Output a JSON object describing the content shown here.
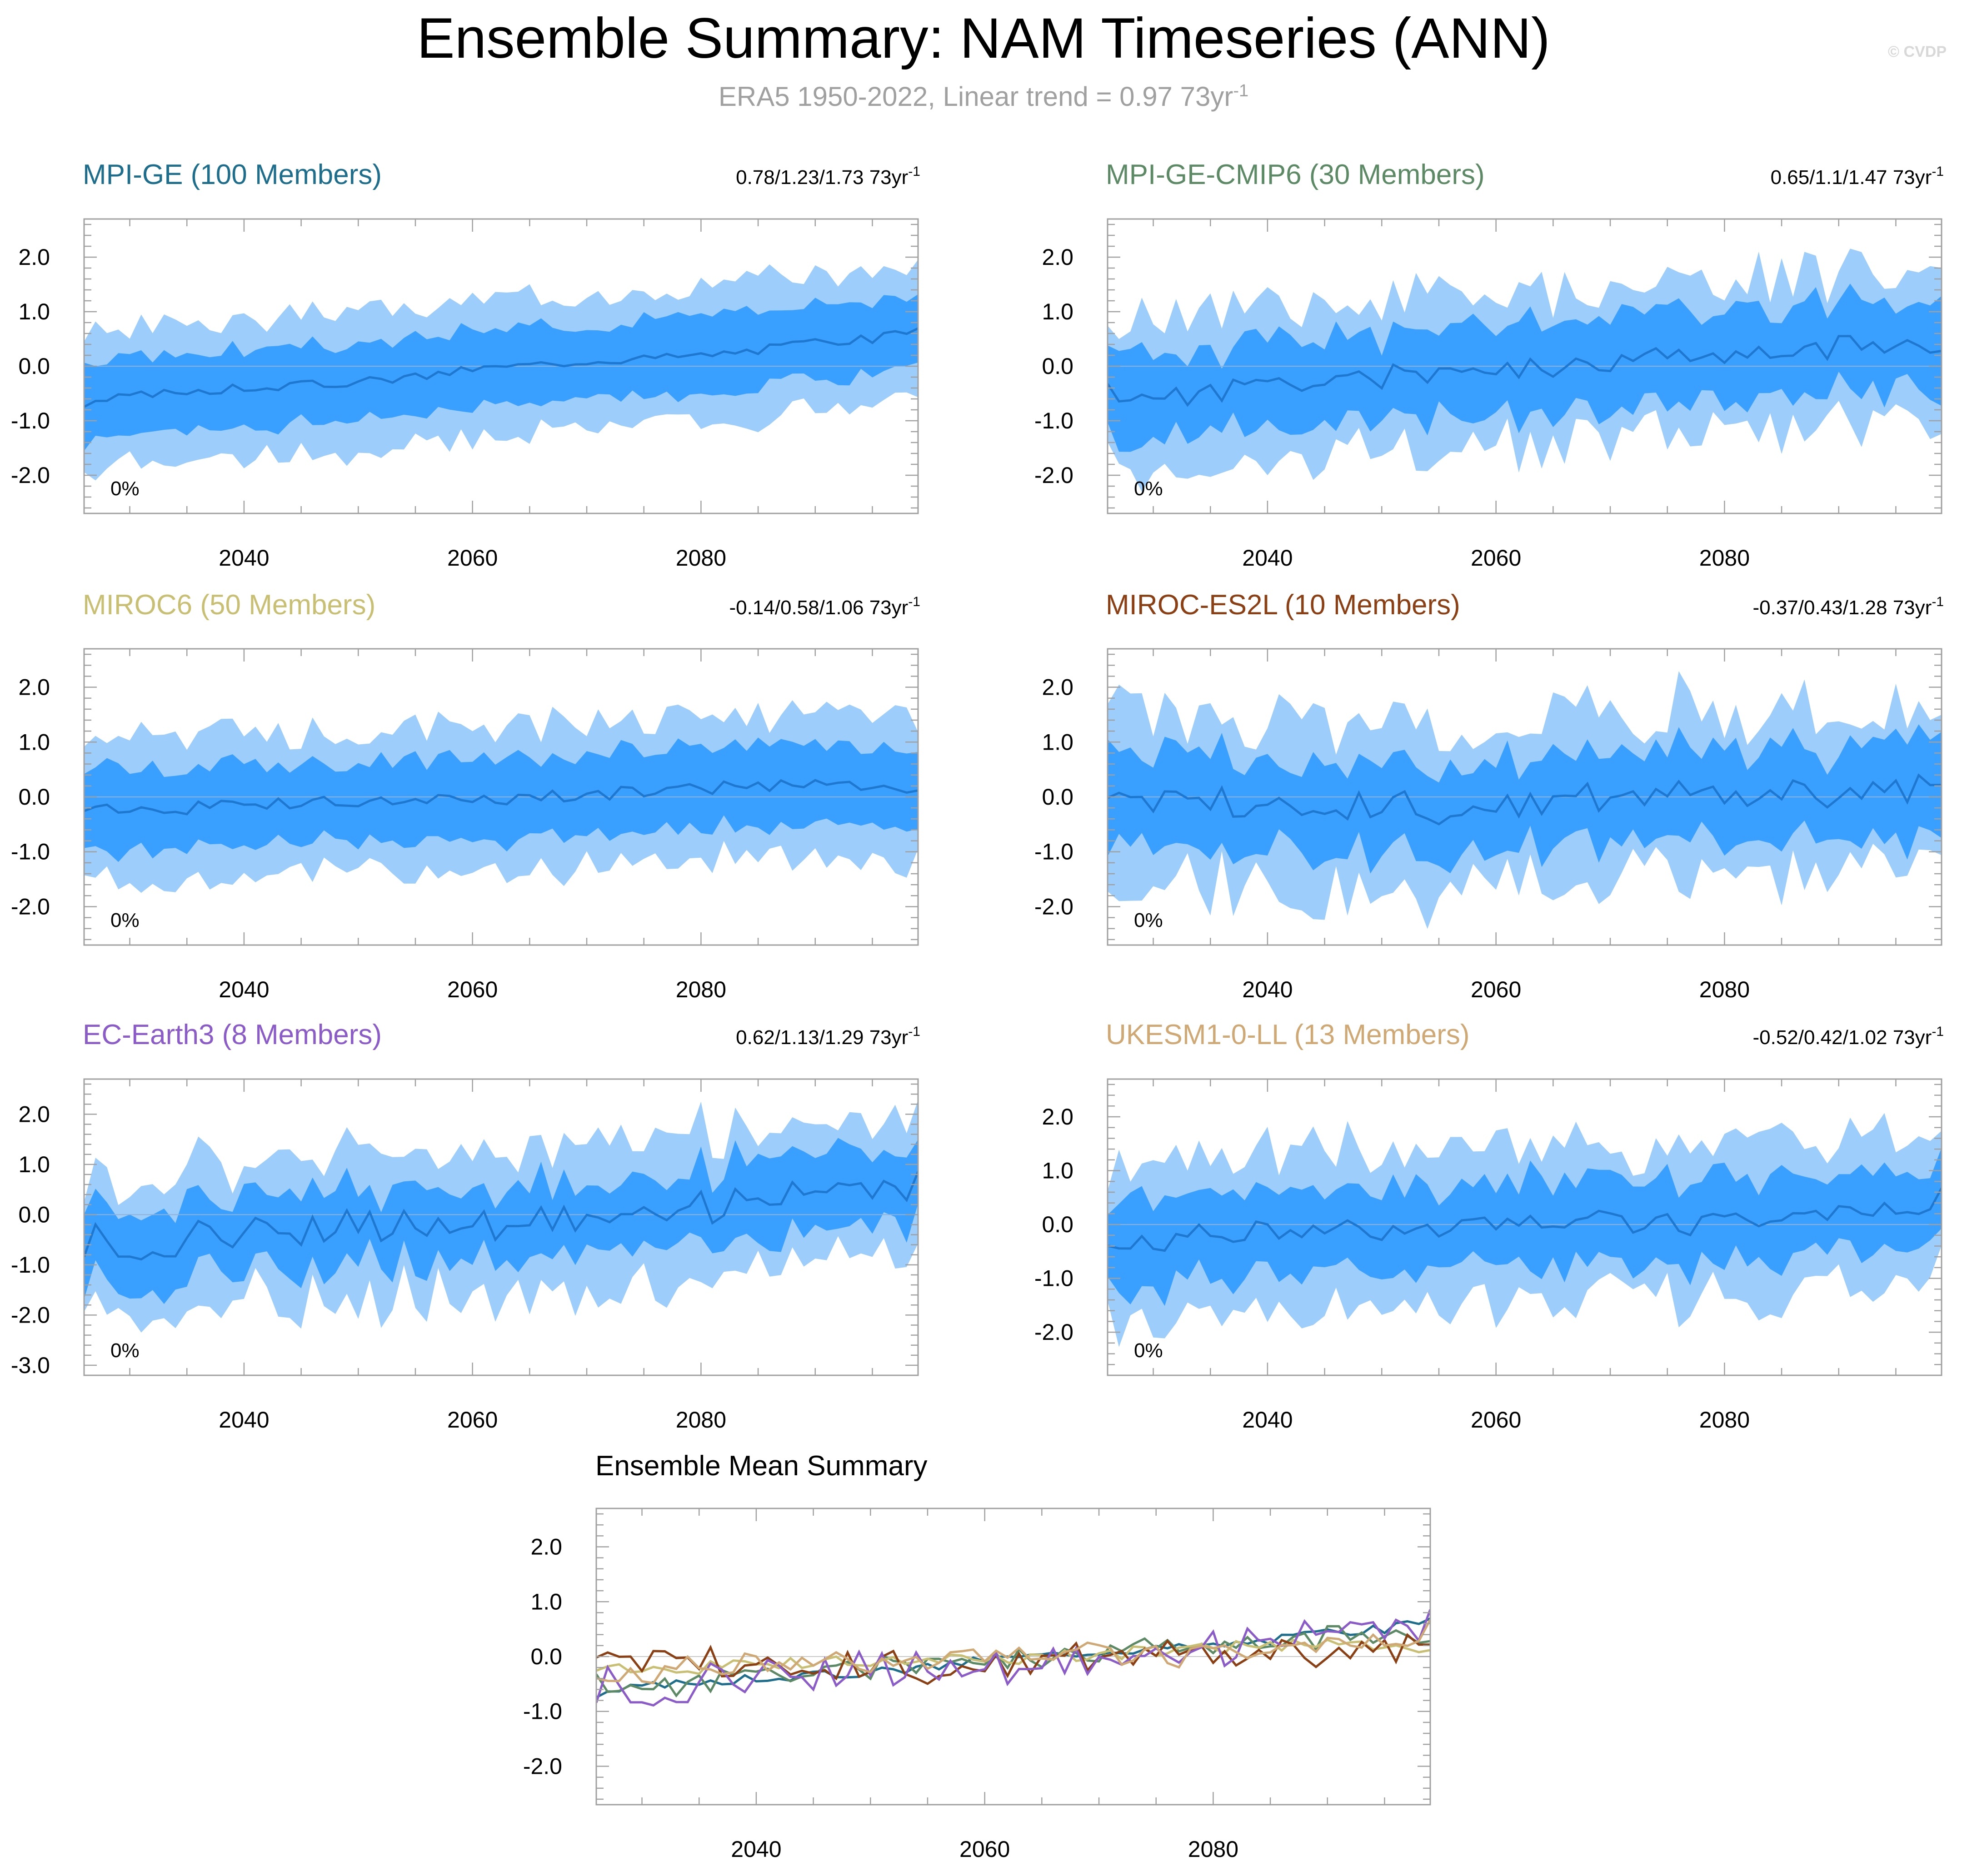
{
  "title": "Ensemble Summary: NAM Timeseries (ANN)",
  "subtitle_main": "ERA5 1950-2022, Linear trend = 0.97 73yr",
  "subtitle_sup": "-1",
  "credit": "© CVDP",
  "colors": {
    "inner_band": "#3aa0ff",
    "outer_band": "#9ccdfb",
    "mean_line": "#1f78cf",
    "zero_line": "#8fb2d6",
    "frame": "#a0a0a0"
  },
  "chart_data": [
    {
      "type": "area",
      "title": "MPI-GE (100 Members)",
      "title_color": "#1c6e8c",
      "trend_text": "0.78/1.23/1.73 73yr",
      "trend_sup": "-1",
      "pct_label": "0%",
      "xlim": [
        2026,
        2099
      ],
      "ylim": [
        -2.7,
        2.7
      ],
      "xticks": [
        2040,
        2060,
        2080
      ],
      "yticks": [
        2.0,
        1.0,
        0.0,
        -1.0,
        -2.0
      ],
      "ytick_labels": [
        "2.0",
        "1.0",
        "0.0",
        "-1.0",
        "-2.0"
      ],
      "x_start": 2026,
      "x_end": 2099,
      "anchors_mean": [
        [
          2026,
          -0.7
        ],
        [
          2030,
          -0.55
        ],
        [
          2035,
          -0.45
        ],
        [
          2040,
          -0.4
        ],
        [
          2045,
          -0.35
        ],
        [
          2050,
          -0.28
        ],
        [
          2055,
          -0.2
        ],
        [
          2060,
          -0.05
        ],
        [
          2065,
          0.02
        ],
        [
          2070,
          0.1
        ],
        [
          2075,
          0.15
        ],
        [
          2080,
          0.2
        ],
        [
          2085,
          0.3
        ],
        [
          2090,
          0.45
        ],
        [
          2095,
          0.5
        ],
        [
          2099,
          0.72
        ]
      ],
      "inner_halfwidth": 0.7,
      "outer_halfwidth": 1.25,
      "noise_mean": 0.08,
      "noise_band": 0.18,
      "seed": 3
    },
    {
      "type": "area",
      "title": "MPI-GE-CMIP6 (30 Members)",
      "title_color": "#5b8a64",
      "trend_text": "0.65/1.1/1.47 73yr",
      "trend_sup": "-1",
      "pct_label": "0%",
      "xlim": [
        2026,
        2099
      ],
      "ylim": [
        -2.7,
        2.7
      ],
      "xticks": [
        2040,
        2060,
        2080
      ],
      "yticks": [
        2.0,
        1.0,
        0.0,
        -1.0,
        -2.0
      ],
      "ytick_labels": [
        "2.0",
        "1.0",
        "0.0",
        "-1.0",
        "-2.0"
      ],
      "x_start": 2026,
      "x_end": 2099,
      "anchors_mean": [
        [
          2026,
          -0.5
        ],
        [
          2030,
          -0.6
        ],
        [
          2035,
          -0.45
        ],
        [
          2040,
          -0.35
        ],
        [
          2045,
          -0.3
        ],
        [
          2050,
          -0.2
        ],
        [
          2055,
          -0.1
        ],
        [
          2060,
          -0.05
        ],
        [
          2065,
          0.0
        ],
        [
          2070,
          0.1
        ],
        [
          2075,
          0.2
        ],
        [
          2080,
          0.25
        ],
        [
          2085,
          0.3
        ],
        [
          2090,
          0.35
        ],
        [
          2095,
          0.45
        ],
        [
          2099,
          0.3
        ]
      ],
      "inner_halfwidth": 0.8,
      "outer_halfwidth": 1.4,
      "noise_mean": 0.22,
      "noise_band": 0.3,
      "seed": 11
    },
    {
      "type": "area",
      "title": "MIROC6 (50 Members)",
      "title_color": "#c8bf72",
      "trend_text": "-0.14/0.58/1.06 73yr",
      "trend_sup": "-1",
      "pct_label": "0%",
      "xlim": [
        2026,
        2099
      ],
      "ylim": [
        -2.7,
        2.7
      ],
      "xticks": [
        2040,
        2060,
        2080
      ],
      "yticks": [
        2.0,
        1.0,
        0.0,
        -1.0,
        -2.0
      ],
      "ytick_labels": [
        "2.0",
        "1.0",
        "0.0",
        "-1.0",
        "-2.0"
      ],
      "x_start": 2026,
      "x_end": 2099,
      "anchors_mean": [
        [
          2026,
          -0.2
        ],
        [
          2030,
          -0.3
        ],
        [
          2035,
          -0.2
        ],
        [
          2040,
          -0.15
        ],
        [
          2045,
          -0.1
        ],
        [
          2050,
          -0.1
        ],
        [
          2055,
          -0.05
        ],
        [
          2060,
          -0.05
        ],
        [
          2065,
          0.0
        ],
        [
          2070,
          0.05
        ],
        [
          2075,
          0.1
        ],
        [
          2080,
          0.15
        ],
        [
          2085,
          0.2
        ],
        [
          2090,
          0.2
        ],
        [
          2095,
          0.25
        ],
        [
          2099,
          0.15
        ]
      ],
      "inner_halfwidth": 0.75,
      "outer_halfwidth": 1.3,
      "noise_mean": 0.12,
      "noise_band": 0.2,
      "seed": 21
    },
    {
      "type": "area",
      "title": "MIROC-ES2L (10 Members)",
      "title_color": "#8b3f12",
      "trend_text": "-0.37/0.43/1.28 73yr",
      "trend_sup": "-1",
      "pct_label": "0%",
      "xlim": [
        2026,
        2099
      ],
      "ylim": [
        -2.7,
        2.7
      ],
      "xticks": [
        2040,
        2060,
        2080
      ],
      "yticks": [
        2.0,
        1.0,
        0.0,
        -1.0,
        -2.0
      ],
      "ytick_labels": [
        "2.0",
        "1.0",
        "0.0",
        "-1.0",
        "-2.0"
      ],
      "x_start": 2026,
      "x_end": 2099,
      "anchors_mean": [
        [
          2026,
          -0.1
        ],
        [
          2030,
          -0.2
        ],
        [
          2035,
          -0.1
        ],
        [
          2040,
          -0.15
        ],
        [
          2045,
          -0.1
        ],
        [
          2050,
          -0.15
        ],
        [
          2055,
          -0.2
        ],
        [
          2060,
          -0.2
        ],
        [
          2065,
          0.0
        ],
        [
          2070,
          0.0
        ],
        [
          2075,
          0.1
        ],
        [
          2080,
          0.05
        ],
        [
          2085,
          0.15
        ],
        [
          2090,
          0.1
        ],
        [
          2095,
          0.2
        ],
        [
          2099,
          0.15
        ]
      ],
      "inner_halfwidth": 0.8,
      "outer_halfwidth": 1.5,
      "noise_mean": 0.3,
      "noise_band": 0.35,
      "seed": 37
    },
    {
      "type": "area",
      "title": "EC-Earth3 (8 Members)",
      "title_color": "#8a5bc9",
      "trend_text": "0.62/1.13/1.29 73yr",
      "trend_sup": "-1",
      "pct_label": "0%",
      "xlim": [
        2026,
        2099
      ],
      "ylim": [
        -3.2,
        2.7
      ],
      "xticks": [
        2040,
        2060,
        2080
      ],
      "yticks": [
        2.0,
        1.0,
        0.0,
        -1.0,
        -2.0,
        -3.0
      ],
      "ytick_labels": [
        "2.0",
        "1.0",
        "0.0",
        "-1.0",
        "-2.0",
        "-3.0"
      ],
      "x_start": 2026,
      "x_end": 2099,
      "anchors_mean": [
        [
          2026,
          -0.5
        ],
        [
          2030,
          -0.6
        ],
        [
          2035,
          -0.5
        ],
        [
          2040,
          -0.35
        ],
        [
          2045,
          -0.3
        ],
        [
          2050,
          -0.25
        ],
        [
          2055,
          -0.25
        ],
        [
          2060,
          -0.2
        ],
        [
          2065,
          -0.15
        ],
        [
          2070,
          0.05
        ],
        [
          2075,
          0.1
        ],
        [
          2080,
          0.15
        ],
        [
          2085,
          0.25
        ],
        [
          2090,
          0.35
        ],
        [
          2095,
          0.55
        ],
        [
          2099,
          0.6
        ]
      ],
      "inner_halfwidth": 0.75,
      "outer_halfwidth": 1.4,
      "noise_mean": 0.35,
      "noise_band": 0.3,
      "seed": 53
    },
    {
      "type": "area",
      "title": "UKESM1-0-LL (13 Members)",
      "title_color": "#cfa874",
      "trend_text": "-0.52/0.42/1.02 73yr",
      "trend_sup": "-1",
      "pct_label": "0%",
      "xlim": [
        2026,
        2099
      ],
      "ylim": [
        -2.8,
        2.7
      ],
      "xticks": [
        2040,
        2060,
        2080
      ],
      "yticks": [
        2.0,
        1.0,
        0.0,
        -1.0,
        -2.0
      ],
      "ytick_labels": [
        "2.0",
        "1.0",
        "0.0",
        "-1.0",
        "-2.0"
      ],
      "x_start": 2026,
      "x_end": 2099,
      "anchors_mean": [
        [
          2026,
          -0.2
        ],
        [
          2030,
          -0.3
        ],
        [
          2035,
          -0.2
        ],
        [
          2040,
          -0.15
        ],
        [
          2045,
          -0.1
        ],
        [
          2050,
          -0.1
        ],
        [
          2055,
          -0.05
        ],
        [
          2060,
          -0.1
        ],
        [
          2065,
          0.0
        ],
        [
          2070,
          0.05
        ],
        [
          2075,
          0.0
        ],
        [
          2080,
          0.05
        ],
        [
          2085,
          0.15
        ],
        [
          2090,
          0.2
        ],
        [
          2095,
          0.3
        ],
        [
          2099,
          0.5
        ]
      ],
      "inner_halfwidth": 0.8,
      "outer_halfwidth": 1.45,
      "noise_mean": 0.22,
      "noise_band": 0.3,
      "seed": 71
    },
    {
      "type": "line",
      "title": "Ensemble Mean Summary",
      "title_color": "#000000",
      "xlim": [
        2026,
        2099
      ],
      "ylim": [
        -2.7,
        2.7
      ],
      "xticks": [
        2040,
        2060,
        2080
      ],
      "yticks": [
        2.0,
        1.0,
        0.0,
        -1.0,
        -2.0
      ],
      "ytick_labels": [
        "2.0",
        "1.0",
        "0.0",
        "-1.0",
        "-2.0"
      ],
      "x_start": 2026,
      "x_end": 2099,
      "series": [
        {
          "name": "MPI-GE",
          "color": "#1c6e8c",
          "panel": 0
        },
        {
          "name": "MPI-GE-CMIP6",
          "color": "#5b8a64",
          "panel": 1
        },
        {
          "name": "MIROC6",
          "color": "#c8bf72",
          "panel": 2
        },
        {
          "name": "MIROC-ES2L",
          "color": "#8b3f12",
          "panel": 3
        },
        {
          "name": "EC-Earth3",
          "color": "#8a5bc9",
          "panel": 4
        },
        {
          "name": "UKESM1-0-LL",
          "color": "#cfa874",
          "panel": 5
        }
      ]
    }
  ]
}
